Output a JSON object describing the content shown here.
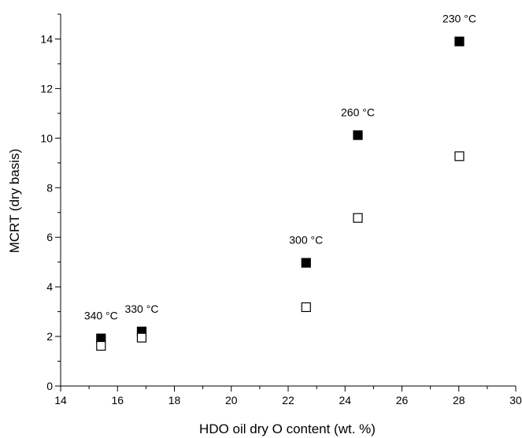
{
  "chart_data": {
    "type": "scatter",
    "xlabel": "HDO oil dry O content (wt. %)",
    "ylabel": "MCRT (dry basis)",
    "xlim": [
      14,
      30
    ],
    "ylim": [
      0,
      15
    ],
    "x_ticks": [
      "14",
      "16",
      "18",
      "20",
      "22",
      "24",
      "26",
      "28",
      "30"
    ],
    "y_ticks": [
      "0",
      "2",
      "4",
      "6",
      "8",
      "10",
      "12",
      "14"
    ],
    "grid": false,
    "series": [
      {
        "marker": "filled-square",
        "color": "#000000",
        "points": [
          {
            "x": 15.42,
            "y": 1.92
          },
          {
            "x": 16.85,
            "y": 2.2
          },
          {
            "x": 22.63,
            "y": 4.97
          },
          {
            "x": 24.45,
            "y": 10.12
          },
          {
            "x": 28.02,
            "y": 13.9
          }
        ]
      },
      {
        "marker": "open-square",
        "color": "#000000",
        "points": [
          {
            "x": 15.42,
            "y": 1.62
          },
          {
            "x": 16.85,
            "y": 1.95
          },
          {
            "x": 22.63,
            "y": 3.18
          },
          {
            "x": 24.45,
            "y": 6.78
          },
          {
            "x": 28.02,
            "y": 9.27
          }
        ]
      }
    ],
    "annotations": [
      {
        "text": "340 °C",
        "x": 15.42
      },
      {
        "text": "330 °C",
        "x": 16.85
      },
      {
        "text": "300 °C",
        "x": 22.63
      },
      {
        "text": "260 °C",
        "x": 24.45
      },
      {
        "text": "230 °C",
        "x": 28.02
      }
    ]
  }
}
